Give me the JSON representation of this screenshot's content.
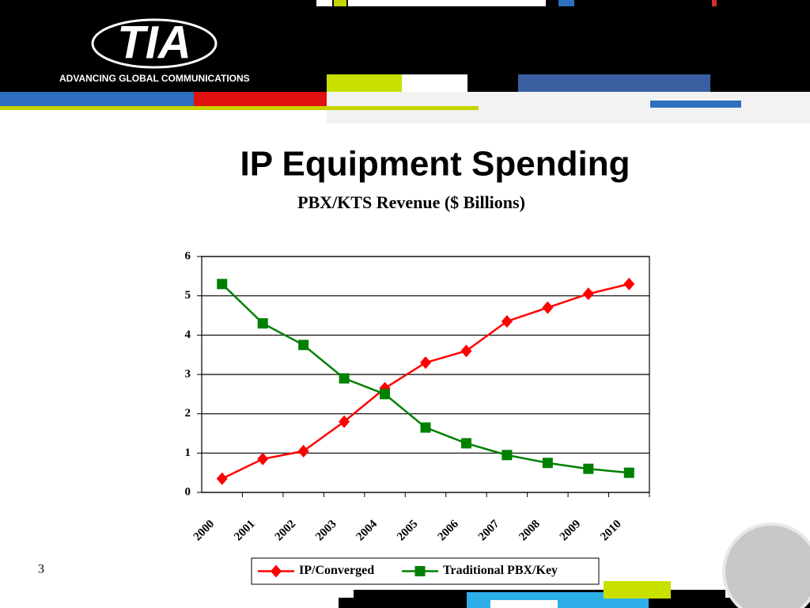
{
  "header": {
    "logo": "TIA",
    "tagline": "ADVANCING GLOBAL COMMUNICATIONS"
  },
  "page_number": "3",
  "chart_data": {
    "type": "line",
    "title": "IP Equipment Spending",
    "subtitle": "PBX/KTS Revenue ($ Billions)",
    "categories": [
      "2000",
      "2001",
      "2002",
      "2003",
      "2004",
      "2005",
      "2006",
      "2007",
      "2008",
      "2009",
      "2010"
    ],
    "series": [
      {
        "name": "IP/Converged",
        "color": "#ff0000",
        "marker": "diamond",
        "values": [
          0.35,
          0.85,
          1.05,
          1.8,
          2.65,
          3.3,
          3.6,
          4.35,
          4.7,
          5.05,
          5.3
        ]
      },
      {
        "name": "Traditional PBX/Key",
        "color": "#008000",
        "marker": "square",
        "values": [
          5.3,
          4.3,
          3.75,
          2.9,
          2.5,
          1.65,
          1.25,
          0.95,
          0.75,
          0.6,
          0.5
        ]
      }
    ],
    "ylim": [
      0,
      6
    ],
    "yticks": [
      0,
      1,
      2,
      3,
      4,
      5,
      6
    ],
    "grid": true,
    "legend": "bottom"
  }
}
